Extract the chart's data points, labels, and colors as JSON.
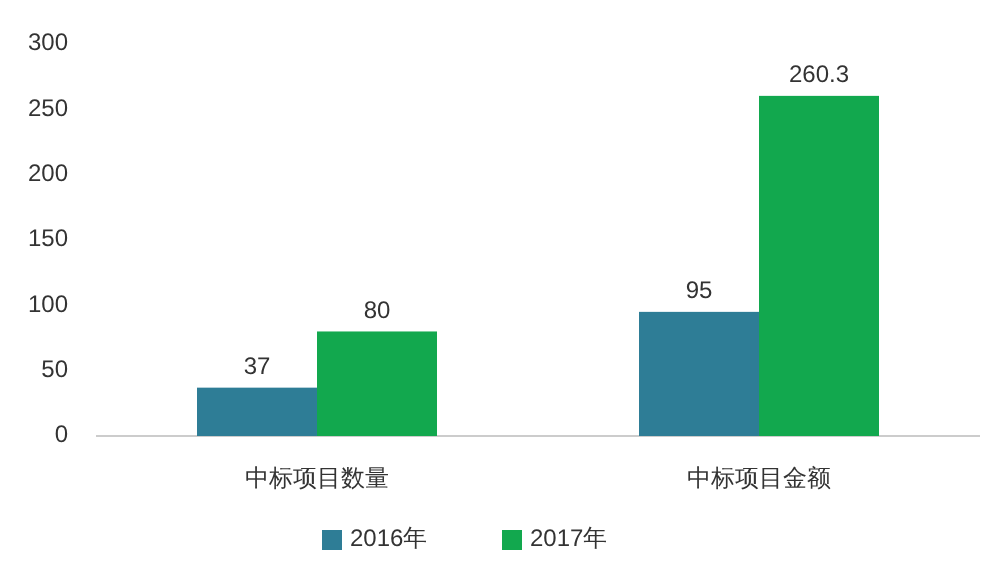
{
  "chart_data": {
    "type": "bar",
    "categories": [
      "中标项目数量",
      "中标项目金额"
    ],
    "series": [
      {
        "name": "2016年",
        "color": "#2e7d96",
        "values": [
          37,
          95
        ]
      },
      {
        "name": "2017年",
        "color": "#12a84e",
        "values": [
          80,
          260.3
        ]
      }
    ],
    "ylim": [
      0,
      300
    ],
    "yticks": [
      0,
      50,
      100,
      150,
      200,
      250,
      300
    ],
    "data_labels": true,
    "legend": "bottom"
  }
}
